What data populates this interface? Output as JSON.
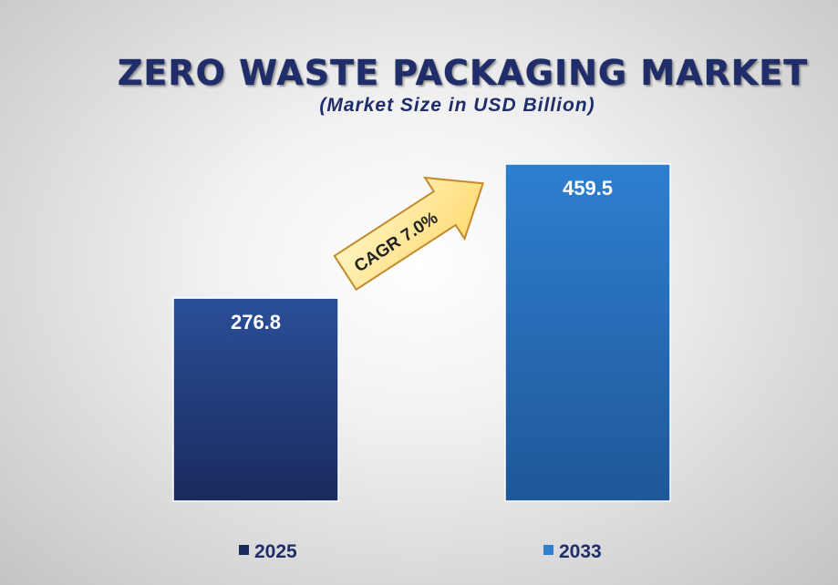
{
  "title": "ZERO WASTE PACKAGING MARKET",
  "subtitle": "(Market Size in USD Billion)",
  "cagr_label": "CAGR 7.0%",
  "colors": {
    "bar_2025_top": "#2a4f97",
    "bar_2025_bottom": "#1a2a5e",
    "bar_2033_top": "#2e7fd0",
    "bar_2033_bottom": "#1f5798",
    "arrow_fill_light": "#fff6c8",
    "arrow_fill_dark": "#ffd86a",
    "arrow_stroke": "#c48a2a",
    "label": "#ffffff",
    "legend_text": "#1f2d6b"
  },
  "chart_data": {
    "type": "bar",
    "title": "ZERO WASTE PACKAGING MARKET",
    "subtitle": "(Market Size in USD Billion)",
    "categories": [
      "2025",
      "2033"
    ],
    "values": [
      276.8,
      459.5
    ],
    "value_labels": [
      "276.8",
      "459.5"
    ],
    "annotation": "CAGR 7.0%",
    "legend": [
      "2025",
      "2033"
    ],
    "legend_position": "bottom",
    "grid": false
  }
}
